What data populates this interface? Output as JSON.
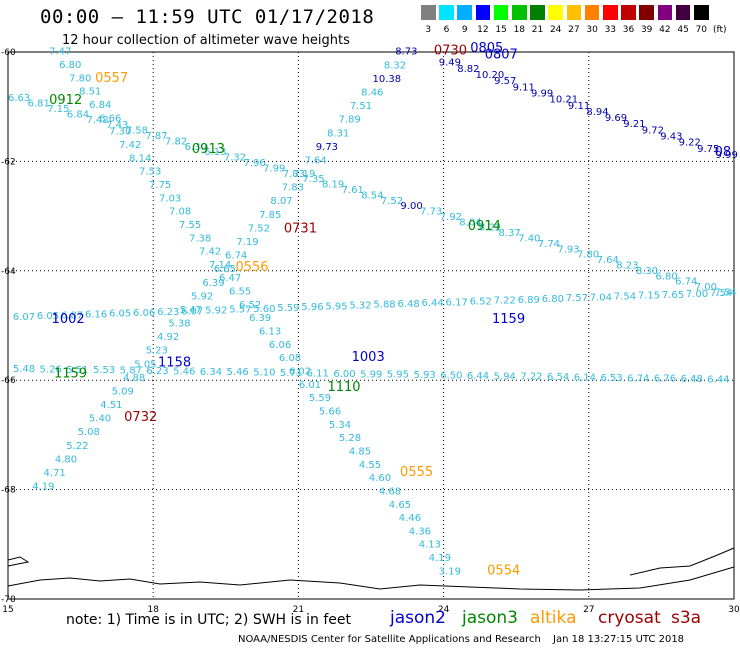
{
  "header": {
    "title": "00:00 – 11:59 UTC 01/17/2018",
    "subtitle": "12 hour collection of altimeter wave heights"
  },
  "color_scale": {
    "labels": [
      "3",
      "6",
      "9",
      "12",
      "15",
      "18",
      "21",
      "24",
      "27",
      "30",
      "33",
      "36",
      "39",
      "42",
      "45",
      "70"
    ],
    "unit": "(ft)",
    "colors": [
      "#808080",
      "#00e5ff",
      "#00b0ff",
      "#0000ff",
      "#00ff00",
      "#00c000",
      "#008000",
      "#ffff00",
      "#ffc000",
      "#ff8000",
      "#ff0000",
      "#c00000",
      "#800000",
      "#800080",
      "#400040",
      "#000000"
    ]
  },
  "axes": {
    "lon_labels": [
      "15",
      "18",
      "21",
      "24",
      "27",
      "30"
    ],
    "lat_labels": [
      "-60",
      "-62",
      "-64",
      "-66",
      "-68",
      "-70"
    ]
  },
  "colors": {
    "jason2": "#0000cc",
    "jason3": "#008800",
    "altika": "#ff9900",
    "cryosat": "#990000",
    "s3a": "#990000",
    "swh": "#33bbdd",
    "swh_dark": "#0000aa"
  },
  "track_labels": [
    {
      "text": "0557",
      "lon": 16.8,
      "lat": -60.55,
      "sat": "altika"
    },
    {
      "text": "0912",
      "lon": 15.85,
      "lat": -60.95,
      "sat": "jason3"
    },
    {
      "text": "0913",
      "lon": 18.8,
      "lat": -61.85,
      "sat": "jason3"
    },
    {
      "text": "0730",
      "lon": 23.8,
      "lat": -60.05,
      "sat": "cryosat"
    },
    {
      "text": "0805",
      "lon": 24.55,
      "lat": -60.0,
      "sat": "jason2"
    },
    {
      "text": "0807",
      "lon": 24.85,
      "lat": -60.12,
      "sat": "jason2"
    },
    {
      "text": "0731",
      "lon": 20.7,
      "lat": -63.3,
      "sat": "cryosat"
    },
    {
      "text": "0914",
      "lon": 24.5,
      "lat": -63.25,
      "sat": "jason3"
    },
    {
      "text": "0556",
      "lon": 19.7,
      "lat": -64.0,
      "sat": "altika"
    },
    {
      "text": "1002",
      "lon": 15.9,
      "lat": -64.95,
      "sat": "jason2"
    },
    {
      "text": "1159",
      "lon": 25.0,
      "lat": -64.95,
      "sat": "jason2"
    },
    {
      "text": "1003",
      "lon": 22.1,
      "lat": -65.65,
      "sat": "jason2"
    },
    {
      "text": "1158",
      "lon": 18.1,
      "lat": -65.75,
      "sat": "jason2"
    },
    {
      "text": "1159",
      "lon": 15.95,
      "lat": -65.95,
      "sat": "jason3"
    },
    {
      "text": "1110",
      "lon": 21.6,
      "lat": -66.2,
      "sat": "jason3"
    },
    {
      "text": "0732",
      "lon": 17.4,
      "lat": -66.75,
      "sat": "cryosat"
    },
    {
      "text": "0555",
      "lon": 23.1,
      "lat": -67.75,
      "sat": "altika"
    },
    {
      "text": "0554",
      "lon": 24.9,
      "lat": -69.55,
      "sat": "altika"
    },
    {
      "text": "08",
      "lon": 29.6,
      "lat": -61.9,
      "sat": "jason2"
    }
  ],
  "track_values": [
    {
      "values": [
        "7.47",
        "6.80",
        "7.80",
        "8.51",
        "6.84",
        "6.66",
        "7.30",
        "7.42",
        "8.14",
        "7.53",
        "7.75",
        "7.03",
        "7.08",
        "7.55",
        "7.38",
        "7.42",
        "7.14",
        "6.47",
        "6.55",
        "6.52",
        "6.39",
        "6.13",
        "6.06",
        "6.08",
        "6.02",
        "6.01",
        "5.59",
        "5.66",
        "5.34",
        "5.28",
        "4.85",
        "4.55",
        "4.60",
        "4.68",
        "4.65",
        "4.46",
        "4.36",
        "4.13",
        "4.19",
        "3.19"
      ],
      "start": [
        15.85,
        -60.05
      ],
      "end": [
        23.9,
        -69.55
      ]
    },
    {
      "values": [
        "6.63",
        "6.81",
        "7.15",
        "6.84",
        "7.42",
        "7.43",
        "7.58",
        "7.87",
        "7.82",
        "6.30",
        "6.13",
        "7.32",
        "7.96",
        "7.99",
        "7.83",
        "7.35",
        "8.19",
        "7.61",
        "8.54",
        "7.52",
        "9.00",
        "7.73",
        "7.92",
        "8.04",
        "8.22",
        "8.37",
        "7.40",
        "7.74",
        "7.93",
        "7.80",
        "7.64",
        "8.23",
        "8.30",
        "6.80",
        "6.74",
        "7.00",
        "7.54",
        "6.89"
      ],
      "start": [
        15.0,
        -60.9
      ],
      "end": [
        30.0,
        -64.55
      ]
    },
    {
      "values": [
        "8.73",
        "8.32",
        "10.38",
        "8.46",
        "7.51",
        "7.89",
        "8.31",
        "9.73",
        "7.64",
        "7.19",
        "7.83",
        "8.07",
        "7.85",
        "7.52",
        "7.19",
        "6.74",
        "6.65",
        "6.39",
        "5.92",
        "5.47",
        "5.38",
        "4.92",
        "5.23",
        "5.05",
        "4.88",
        "5.09",
        "4.51",
        "5.40",
        "5.08",
        "5.22",
        "4.80",
        "4.71",
        "4.19"
      ],
      "start": [
        23.0,
        -60.05
      ],
      "end": [
        15.5,
        -68.0
      ]
    },
    {
      "values": [
        "6.07",
        "6.05",
        "6.87",
        "6.16",
        "6.05",
        "6.06",
        "6.23",
        "6.07",
        "5.92",
        "5.57",
        "5.60",
        "5.59",
        "5.96",
        "5.95",
        "5.32",
        "5.88",
        "6.48",
        "6.44",
        "6.17",
        "6.52",
        "7.22",
        "6.89",
        "6.80",
        "7.57",
        "7.04",
        "7.54",
        "7.15",
        "7.65",
        "7.00",
        "7.54",
        "6.89"
      ],
      "start": [
        15.1,
        -64.9
      ],
      "end": [
        30.0,
        -64.45
      ]
    },
    {
      "values": [
        "5.48",
        "5.26",
        "5.51",
        "5.53",
        "5.87",
        "6.23",
        "5.46",
        "6.34",
        "5.46",
        "5.10",
        "5.71",
        "6.11",
        "6.00",
        "5.99",
        "5.95",
        "5.93",
        "6.50",
        "6.44",
        "5.94",
        "7.22",
        "6.54",
        "6.14",
        "6.53",
        "6.74",
        "6.76",
        "6.48",
        "6.44",
        "6.71"
      ],
      "start": [
        15.1,
        -65.85
      ],
      "end": [
        30.0,
        -66.05
      ]
    },
    {
      "values": [
        "9.49",
        "8.82",
        "10.20",
        "9.57",
        "9.11",
        "9.99",
        "10.21",
        "9.11",
        "8.94",
        "9.69",
        "9.21",
        "9.72",
        "9.43",
        "9.22",
        "9.75",
        "9.99",
        "9.1"
      ],
      "start": [
        23.9,
        -60.25
      ],
      "end": [
        30.0,
        -62.05
      ]
    }
  ],
  "note": "note: 1) Time is in UTC; 2) SWH is in feet",
  "legend_sats": [
    {
      "name": "jason2",
      "key": "jason2"
    },
    {
      "name": "jason3",
      "key": "jason3"
    },
    {
      "name": "altika",
      "key": "altika"
    },
    {
      "name": "cryosat",
      "key": "cryosat"
    },
    {
      "name": "s3a",
      "key": "s3a"
    }
  ],
  "footer": {
    "center": "NOAA/NESDIS Center for Satellite Applications and Research",
    "timestamp": "Jan 18 13:27:15 UTC 2018"
  }
}
